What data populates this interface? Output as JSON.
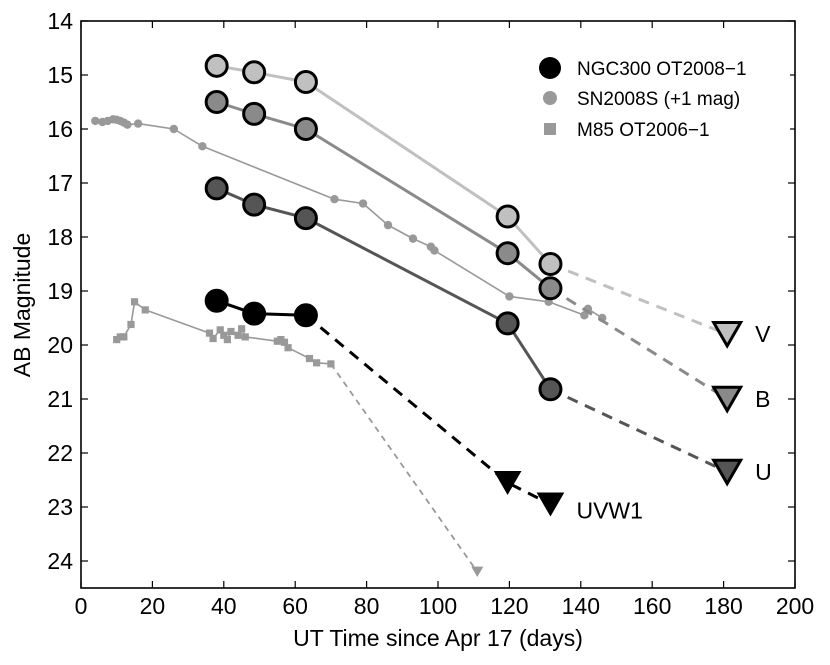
{
  "chart_data": {
    "type": "scatter",
    "title": "",
    "xlabel": "UT Time since Apr 17  (days)",
    "ylabel": "AB Magnitude",
    "xlim": [
      0,
      200
    ],
    "ylim": [
      24.5,
      14
    ],
    "y_inverted": true,
    "xticks": [
      0,
      20,
      40,
      60,
      80,
      100,
      120,
      140,
      160,
      180,
      200
    ],
    "yticks": [
      14,
      15,
      16,
      17,
      18,
      19,
      20,
      21,
      22,
      23,
      24
    ],
    "grid": false,
    "legend_position": "top-right",
    "legend": [
      {
        "label": "NGC300 OT2008−1",
        "marker": "circle-large",
        "color": "#000000"
      },
      {
        "label": "SN2008S (+1 mag)",
        "marker": "circle-small",
        "color": "#999999"
      },
      {
        "label": "M85 OT2006−1",
        "marker": "square",
        "color": "#999999"
      }
    ],
    "series": [
      {
        "name": "V",
        "group": "NGC300 OT2008-1",
        "fill": "#c0c0c0",
        "line_color": "#c0c0c0",
        "x": [
          38,
          48.5,
          63,
          119.5,
          131.5
        ],
        "y": [
          14.83,
          14.95,
          15.13,
          17.62,
          18.5
        ],
        "upper_limit": {
          "x": 181,
          "y": 19.8
        }
      },
      {
        "name": "B",
        "group": "NGC300 OT2008-1",
        "fill": "#8a8a8a",
        "line_color": "#8a8a8a",
        "x": [
          38,
          48.5,
          63,
          119.5,
          131.5
        ],
        "y": [
          15.5,
          15.72,
          16.0,
          18.3,
          18.95
        ],
        "upper_limit": {
          "x": 181,
          "y": 21.0
        }
      },
      {
        "name": "U",
        "group": "NGC300 OT2008-1",
        "fill": "#555555",
        "line_color": "#555555",
        "x": [
          38,
          48.5,
          63,
          119.5,
          131.5
        ],
        "y": [
          17.1,
          17.4,
          17.65,
          19.6,
          20.82
        ],
        "upper_limit": {
          "x": 181,
          "y": 22.35
        }
      },
      {
        "name": "UVW1",
        "group": "NGC300 OT2008-1",
        "fill": "#000000",
        "line_color": "#000000",
        "x": [
          38,
          48.5,
          63
        ],
        "y": [
          19.18,
          19.42,
          19.45
        ],
        "upper_limits": [
          {
            "x": 119.5,
            "y": 22.55
          },
          {
            "x": 131.5,
            "y": 22.95
          }
        ]
      },
      {
        "name": "SN2008S (+1 mag)",
        "fill": "#999999",
        "line_color": "#999999",
        "x": [
          4,
          6,
          7.5,
          9,
          10,
          11,
          12,
          13,
          16,
          26,
          34,
          71,
          79,
          86,
          93,
          98,
          99,
          120,
          131,
          141,
          142,
          146
        ],
        "y": [
          15.85,
          15.87,
          15.85,
          15.82,
          15.83,
          15.85,
          15.88,
          15.92,
          15.9,
          16.0,
          16.32,
          17.3,
          17.38,
          17.78,
          18.03,
          18.18,
          18.25,
          19.1,
          19.2,
          19.45,
          19.33,
          19.5
        ]
      },
      {
        "name": "M85 OT2006−1",
        "fill": "#999999",
        "line_color": "#999999",
        "x": [
          10,
          11,
          12,
          14,
          15,
          18,
          36,
          37,
          39,
          40,
          41,
          42,
          44,
          45,
          46,
          55,
          56,
          57,
          58,
          64,
          66,
          70
        ],
        "y": [
          19.9,
          19.85,
          19.85,
          19.62,
          19.2,
          19.35,
          19.78,
          19.88,
          19.72,
          19.82,
          19.9,
          19.75,
          19.82,
          19.7,
          19.85,
          19.93,
          19.9,
          19.95,
          20.05,
          20.25,
          20.33,
          20.35
        ],
        "upper_limit": {
          "x": 111,
          "y": 24.2
        }
      }
    ],
    "band_labels": [
      "V",
      "B",
      "U",
      "UVW1"
    ]
  }
}
